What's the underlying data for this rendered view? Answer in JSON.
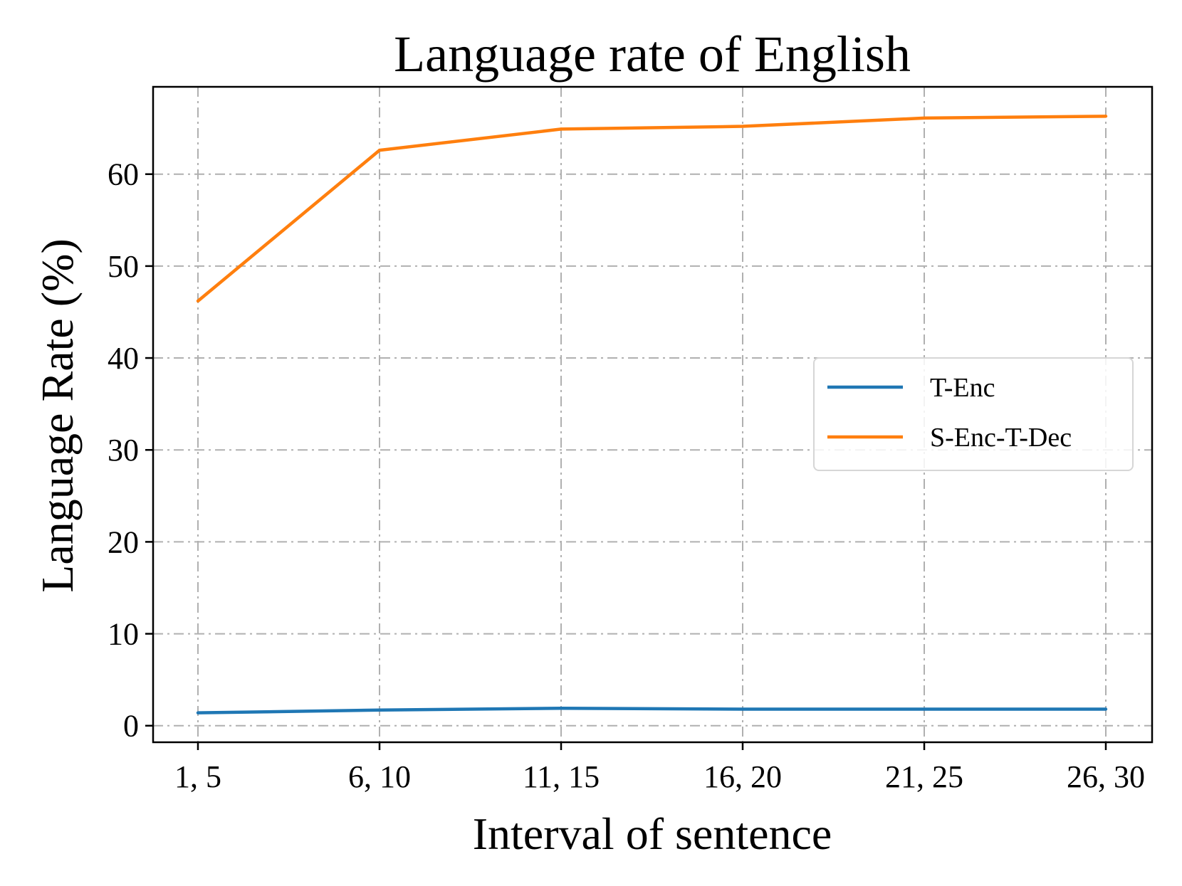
{
  "chart_data": {
    "type": "line",
    "title": "Language rate of English",
    "xlabel": "Interval of sentence",
    "ylabel": "Language Rate (%)",
    "categories": [
      "1, 5",
      "6, 10",
      "11, 15",
      "16, 20",
      "21, 25",
      "26, 30"
    ],
    "yticks": [
      "0",
      "10",
      "20",
      "30",
      "40",
      "50",
      "60"
    ],
    "ylim": [
      -1.8,
      69.5
    ],
    "grid": true,
    "legend_position": "center-right",
    "series": [
      {
        "name": "T-Enc",
        "color": "#1f77b4",
        "values": [
          1.4,
          1.7,
          1.9,
          1.8,
          1.8,
          1.8
        ]
      },
      {
        "name": "S-Enc-T-Dec",
        "color": "#ff7f0e",
        "values": [
          46.2,
          62.6,
          64.9,
          65.2,
          66.1,
          66.3
        ]
      }
    ]
  }
}
